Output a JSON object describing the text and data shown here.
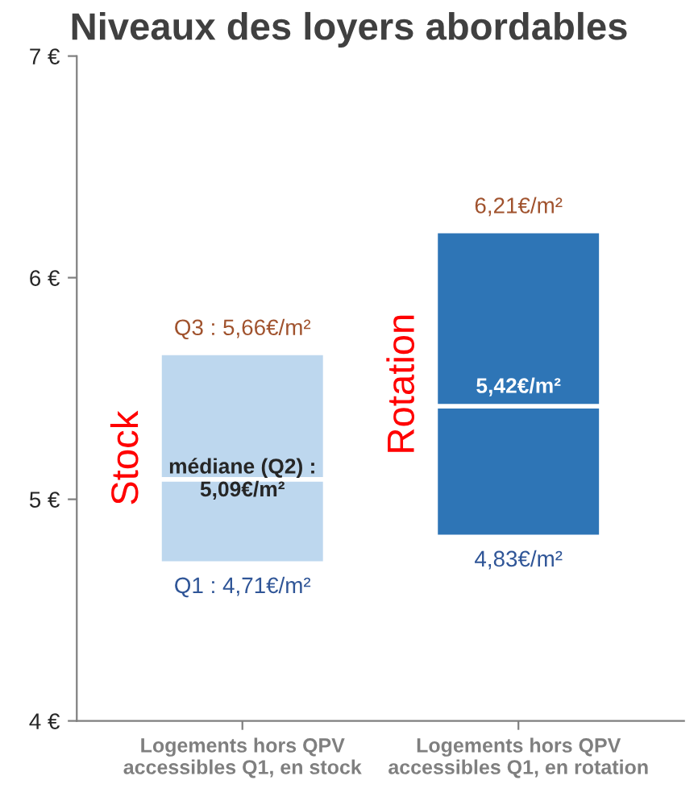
{
  "chart_data": {
    "type": "bar",
    "title": "Niveaux des loyers abordables",
    "categories": [
      "Logements hors QPV\naccessibles Q1, en stock",
      "Logements hors QPV\naccessibles Q1, en rotation"
    ],
    "series": [
      {
        "colors": [
          "#bdd7ee",
          "#2e75b6"
        ],
        "base": [
          4.71,
          4.83
        ],
        "values": [
          0.38,
          0.59
        ]
      },
      {
        "colors": [
          "#bdd7ee",
          "#2e75b6"
        ],
        "base": [
          5.09,
          5.42
        ],
        "values": [
          0.57,
          0.79
        ]
      }
    ],
    "ylim": [
      4,
      7
    ],
    "yticks": [
      {
        "value": 4,
        "label": "4 €"
      },
      {
        "value": 5,
        "label": "5 €"
      },
      {
        "value": 6,
        "label": "6 €"
      },
      {
        "value": 7,
        "label": "7 €"
      }
    ],
    "grid": false,
    "annotations": [
      {
        "text": "Q3 : 5,66€/m²",
        "x": "Logements hors QPV\naccessibles Q1, en stock",
        "y": 5.66
      },
      {
        "text": "médiane (Q2) :\n5,09€/m²",
        "x": "Logements hors QPV\naccessibles Q1, en stock",
        "y": 5.09
      },
      {
        "text": "Q1 : 4,71€/m²",
        "x": "Logements hors QPV\naccessibles Q1, en stock",
        "y": 4.71
      },
      {
        "text": "6,21€/m²",
        "x": "Logements hors QPV\naccessibles Q1, en rotation",
        "y": 6.21
      },
      {
        "text": "5,42€/m²",
        "x": "Logements hors QPV\naccessibles Q1, en rotation",
        "y": 5.42
      },
      {
        "text": "4,83€/m²",
        "x": "Logements hors QPV\naccessibles Q1, en rotation",
        "y": 4.83
      },
      "Stock",
      "Rotation"
    ]
  }
}
